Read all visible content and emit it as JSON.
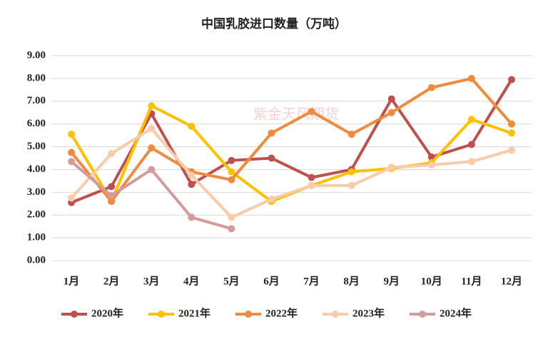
{
  "chart_data": {
    "type": "line",
    "title": "中国乳胶进口数量（万吨）",
    "watermark": "紫金天风期货",
    "categories": [
      "1月",
      "2月",
      "3月",
      "4月",
      "5月",
      "6月",
      "7月",
      "8月",
      "9月",
      "10月",
      "11月",
      "12月"
    ],
    "series": [
      {
        "name": "2020年",
        "color": "#c0504d",
        "values": [
          2.55,
          3.25,
          6.45,
          3.35,
          4.4,
          4.5,
          3.65,
          4.0,
          7.1,
          4.55,
          5.1,
          7.95
        ]
      },
      {
        "name": "2021年",
        "color": "#ffc000",
        "values": [
          5.55,
          2.6,
          6.8,
          5.9,
          3.9,
          2.6,
          3.3,
          3.9,
          4.05,
          4.3,
          6.2,
          5.6
        ]
      },
      {
        "name": "2022年",
        "color": "#f08a3c",
        "values": [
          4.75,
          2.6,
          4.95,
          3.9,
          3.55,
          5.6,
          6.55,
          5.55,
          6.5,
          7.6,
          8.0,
          6.0
        ]
      },
      {
        "name": "2023年",
        "color": "#f9cba8",
        "values": [
          2.75,
          4.7,
          5.8,
          3.75,
          1.9,
          2.7,
          3.3,
          3.3,
          4.1,
          4.2,
          4.35,
          4.85
        ]
      },
      {
        "name": "2024年",
        "color": "#d69a9a",
        "values": [
          4.35,
          2.85,
          4.0,
          1.9,
          1.4,
          null,
          null,
          null,
          null,
          null,
          null,
          null
        ]
      }
    ],
    "ylim": [
      0,
      9
    ],
    "yticks": [
      {
        "value": 0,
        "label": "0.00"
      },
      {
        "value": 1,
        "label": "1.00"
      },
      {
        "value": 2,
        "label": "2.00"
      },
      {
        "value": 3,
        "label": "3.00"
      },
      {
        "value": 4,
        "label": "4.00"
      },
      {
        "value": 5,
        "label": "5.00"
      },
      {
        "value": 6,
        "label": "6.00"
      },
      {
        "value": 7,
        "label": "7.00"
      },
      {
        "value": 8,
        "label": "8.00"
      },
      {
        "value": 9,
        "label": "9.00"
      }
    ],
    "grid": true,
    "legend": "bottom"
  }
}
